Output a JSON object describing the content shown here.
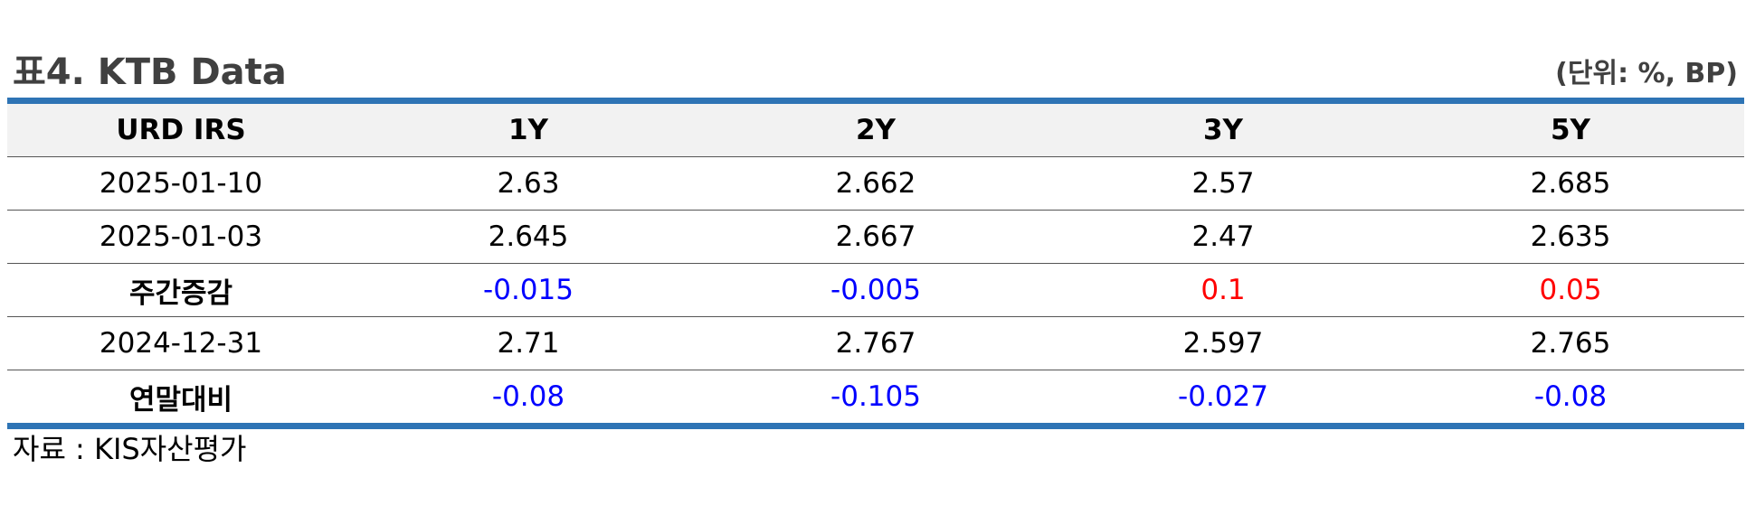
{
  "title": "표4. KTB Data",
  "unit": "(단위: %, BP)",
  "table": {
    "headers": [
      "URD IRS",
      "1Y",
      "2Y",
      "3Y",
      "5Y"
    ],
    "rows": [
      {
        "label": "2025-01-10",
        "label_bold": false,
        "values": [
          "2.63",
          "2.662",
          "2.57",
          "2.685"
        ],
        "colors": [
          "#000000",
          "#000000",
          "#000000",
          "#000000"
        ]
      },
      {
        "label": "2025-01-03",
        "label_bold": false,
        "values": [
          "2.645",
          "2.667",
          "2.47",
          "2.635"
        ],
        "colors": [
          "#000000",
          "#000000",
          "#000000",
          "#000000"
        ]
      },
      {
        "label": "주간증감",
        "label_bold": true,
        "values": [
          "-0.015",
          "-0.005",
          "0.1",
          "0.05"
        ],
        "colors": [
          "#0000ff",
          "#0000ff",
          "#ff0000",
          "#ff0000"
        ]
      },
      {
        "label": "2024-12-31",
        "label_bold": false,
        "values": [
          "2.71",
          "2.767",
          "2.597",
          "2.765"
        ],
        "colors": [
          "#000000",
          "#000000",
          "#000000",
          "#000000"
        ]
      },
      {
        "label": "연말대비",
        "label_bold": true,
        "values": [
          "-0.08",
          "-0.105",
          "-0.027",
          "-0.08"
        ],
        "colors": [
          "#0000ff",
          "#0000ff",
          "#0000ff",
          "#0000ff"
        ]
      }
    ]
  },
  "footnote": "자료 : KIS자산평가",
  "colors": {
    "rule": "#2e74b5",
    "header_bg": "#f2f2f2",
    "negative": "#0000ff",
    "positive": "#ff0000"
  }
}
